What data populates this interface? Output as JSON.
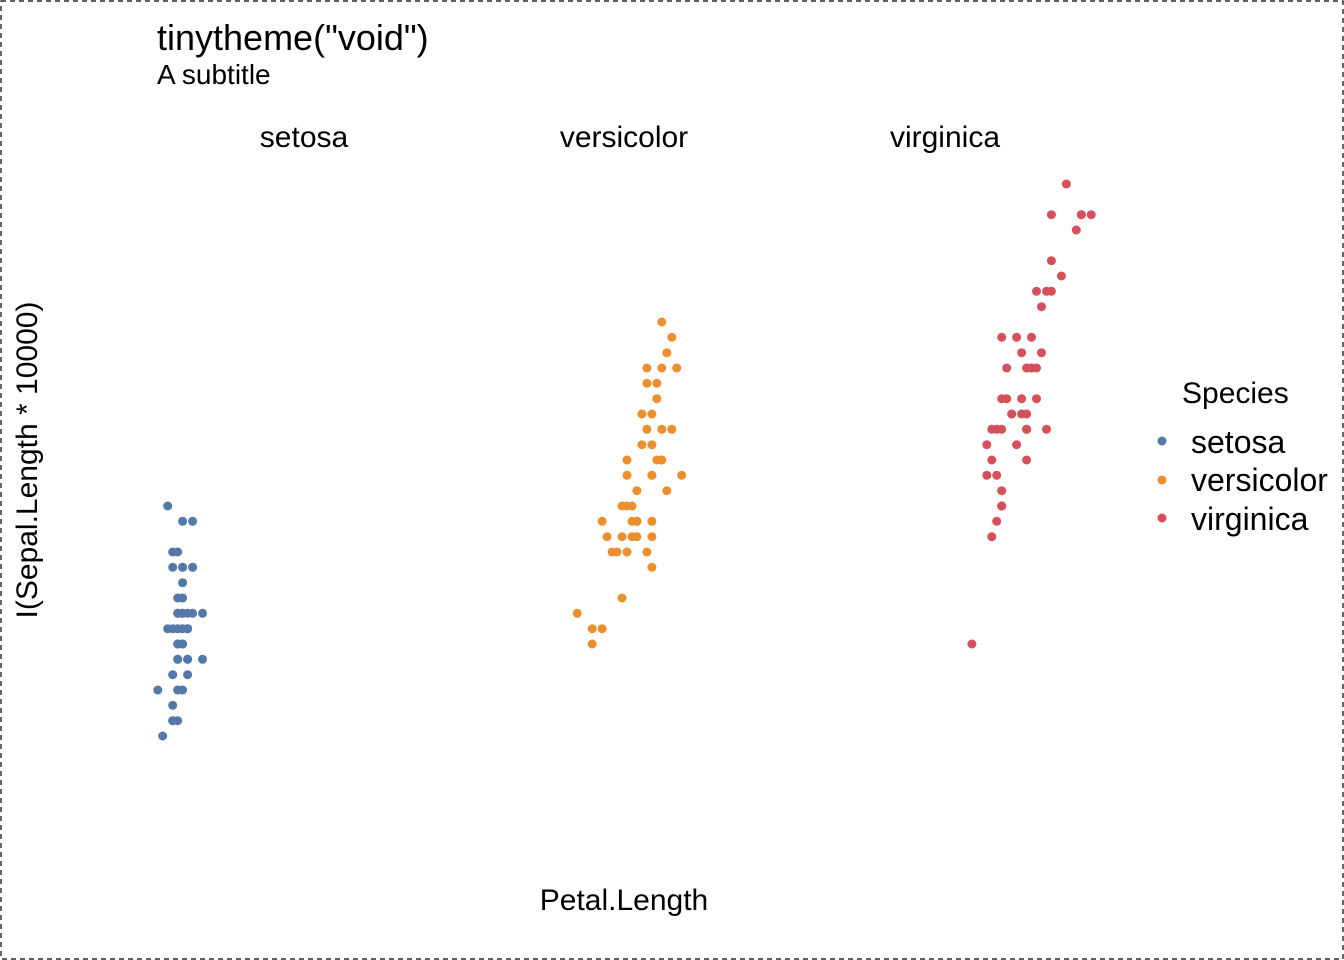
{
  "chart_data": {
    "type": "scatter",
    "title": "tinytheme(\"void\")",
    "subtitle": "A subtitle",
    "xlabel": "Petal.Length",
    "ylabel": "I(Sepal.Length * 10000)",
    "grid": false,
    "axes_visible": false,
    "legend": {
      "title": "Species",
      "placement": "right",
      "entries": [
        "setosa",
        "versicolor",
        "virginica"
      ]
    },
    "facets": [
      "setosa",
      "versicolor",
      "virginica"
    ],
    "xlim": [
      1,
      6.9
    ],
    "ylim": [
      43000,
      79000
    ],
    "series": [
      {
        "name": "setosa",
        "color": "#5478A8",
        "points": [
          [
            1.4,
            51000
          ],
          [
            1.4,
            49000
          ],
          [
            1.3,
            47000
          ],
          [
            1.5,
            46000
          ],
          [
            1.4,
            50000
          ],
          [
            1.7,
            54000
          ],
          [
            1.4,
            46000
          ],
          [
            1.5,
            50000
          ],
          [
            1.4,
            44000
          ],
          [
            1.5,
            49000
          ],
          [
            1.5,
            54000
          ],
          [
            1.6,
            48000
          ],
          [
            1.4,
            48000
          ],
          [
            1.1,
            43000
          ],
          [
            1.2,
            58000
          ],
          [
            1.5,
            57000
          ],
          [
            1.3,
            54000
          ],
          [
            1.4,
            51000
          ],
          [
            1.7,
            57000
          ],
          [
            1.5,
            51000
          ],
          [
            1.7,
            54000
          ],
          [
            1.5,
            51000
          ],
          [
            1.0,
            46000
          ],
          [
            1.7,
            51000
          ],
          [
            1.9,
            48000
          ],
          [
            1.6,
            50000
          ],
          [
            1.6,
            50000
          ],
          [
            1.5,
            52000
          ],
          [
            1.4,
            52000
          ],
          [
            1.6,
            47000
          ],
          [
            1.6,
            48000
          ],
          [
            1.5,
            54000
          ],
          [
            1.5,
            52000
          ],
          [
            1.4,
            55000
          ],
          [
            1.5,
            49000
          ],
          [
            1.2,
            50000
          ],
          [
            1.3,
            55000
          ],
          [
            1.4,
            49000
          ],
          [
            1.3,
            44000
          ],
          [
            1.5,
            51000
          ],
          [
            1.3,
            50000
          ],
          [
            1.3,
            45000
          ],
          [
            1.3,
            44000
          ],
          [
            1.6,
            50000
          ],
          [
            1.9,
            51000
          ],
          [
            1.4,
            48000
          ],
          [
            1.6,
            51000
          ],
          [
            1.4,
            46000
          ],
          [
            1.5,
            53000
          ],
          [
            1.4,
            50000
          ]
        ]
      },
      {
        "name": "versicolor",
        "color": "#EE8F2F",
        "points": [
          [
            4.7,
            70000
          ],
          [
            4.5,
            64000
          ],
          [
            4.9,
            69000
          ],
          [
            4.0,
            55000
          ],
          [
            4.6,
            65000
          ],
          [
            4.5,
            57000
          ],
          [
            4.7,
            63000
          ],
          [
            3.3,
            49000
          ],
          [
            4.6,
            66000
          ],
          [
            3.9,
            52000
          ],
          [
            3.5,
            50000
          ],
          [
            4.2,
            59000
          ],
          [
            4.0,
            60000
          ],
          [
            4.7,
            61000
          ],
          [
            3.6,
            56000
          ],
          [
            4.4,
            67000
          ],
          [
            4.5,
            56000
          ],
          [
            4.1,
            58000
          ],
          [
            4.5,
            62000
          ],
          [
            3.9,
            56000
          ],
          [
            4.8,
            59000
          ],
          [
            4.0,
            61000
          ],
          [
            4.9,
            63000
          ],
          [
            4.7,
            61000
          ],
          [
            4.3,
            64000
          ],
          [
            4.4,
            66000
          ],
          [
            4.8,
            68000
          ],
          [
            5.0,
            67000
          ],
          [
            4.5,
            60000
          ],
          [
            3.5,
            57000
          ],
          [
            3.8,
            55000
          ],
          [
            3.7,
            55000
          ],
          [
            3.9,
            58000
          ],
          [
            5.1,
            60000
          ],
          [
            4.5,
            54000
          ],
          [
            4.5,
            60000
          ],
          [
            4.7,
            67000
          ],
          [
            4.4,
            63000
          ],
          [
            4.1,
            56000
          ],
          [
            4.0,
            55000
          ],
          [
            4.4,
            55000
          ],
          [
            4.6,
            61000
          ],
          [
            4.0,
            58000
          ],
          [
            3.3,
            50000
          ],
          [
            4.2,
            56000
          ],
          [
            4.2,
            57000
          ],
          [
            4.2,
            57000
          ],
          [
            4.3,
            62000
          ],
          [
            3.0,
            51000
          ],
          [
            4.1,
            57000
          ]
        ]
      },
      {
        "name": "virginica",
        "color": "#D5505A",
        "points": [
          [
            6.0,
            63000
          ],
          [
            5.1,
            58000
          ],
          [
            5.9,
            71000
          ],
          [
            5.6,
            63000
          ],
          [
            5.8,
            65000
          ],
          [
            6.6,
            76000
          ],
          [
            4.5,
            49000
          ],
          [
            6.3,
            73000
          ],
          [
            5.8,
            67000
          ],
          [
            6.1,
            72000
          ],
          [
            5.1,
            65000
          ],
          [
            5.3,
            64000
          ],
          [
            5.5,
            68000
          ],
          [
            5.0,
            57000
          ],
          [
            5.1,
            58000
          ],
          [
            5.3,
            64000
          ],
          [
            5.5,
            65000
          ],
          [
            6.7,
            77000
          ],
          [
            6.9,
            77000
          ],
          [
            5.0,
            60000
          ],
          [
            5.7,
            69000
          ],
          [
            4.9,
            56000
          ],
          [
            6.7,
            77000
          ],
          [
            4.9,
            63000
          ],
          [
            5.7,
            67000
          ],
          [
            6.0,
            72000
          ],
          [
            4.8,
            62000
          ],
          [
            4.9,
            61000
          ],
          [
            5.6,
            64000
          ],
          [
            5.8,
            72000
          ],
          [
            6.1,
            74000
          ],
          [
            6.4,
            79000
          ],
          [
            5.6,
            64000
          ],
          [
            5.1,
            63000
          ],
          [
            5.6,
            61000
          ],
          [
            6.1,
            77000
          ],
          [
            5.6,
            63000
          ],
          [
            5.5,
            64000
          ],
          [
            4.8,
            60000
          ],
          [
            5.4,
            69000
          ],
          [
            5.6,
            67000
          ],
          [
            5.1,
            69000
          ],
          [
            5.1,
            58000
          ],
          [
            5.9,
            68000
          ],
          [
            5.7,
            67000
          ],
          [
            5.2,
            67000
          ],
          [
            5.0,
            63000
          ],
          [
            5.2,
            65000
          ],
          [
            5.4,
            62000
          ],
          [
            5.1,
            59000
          ]
        ]
      }
    ]
  }
}
